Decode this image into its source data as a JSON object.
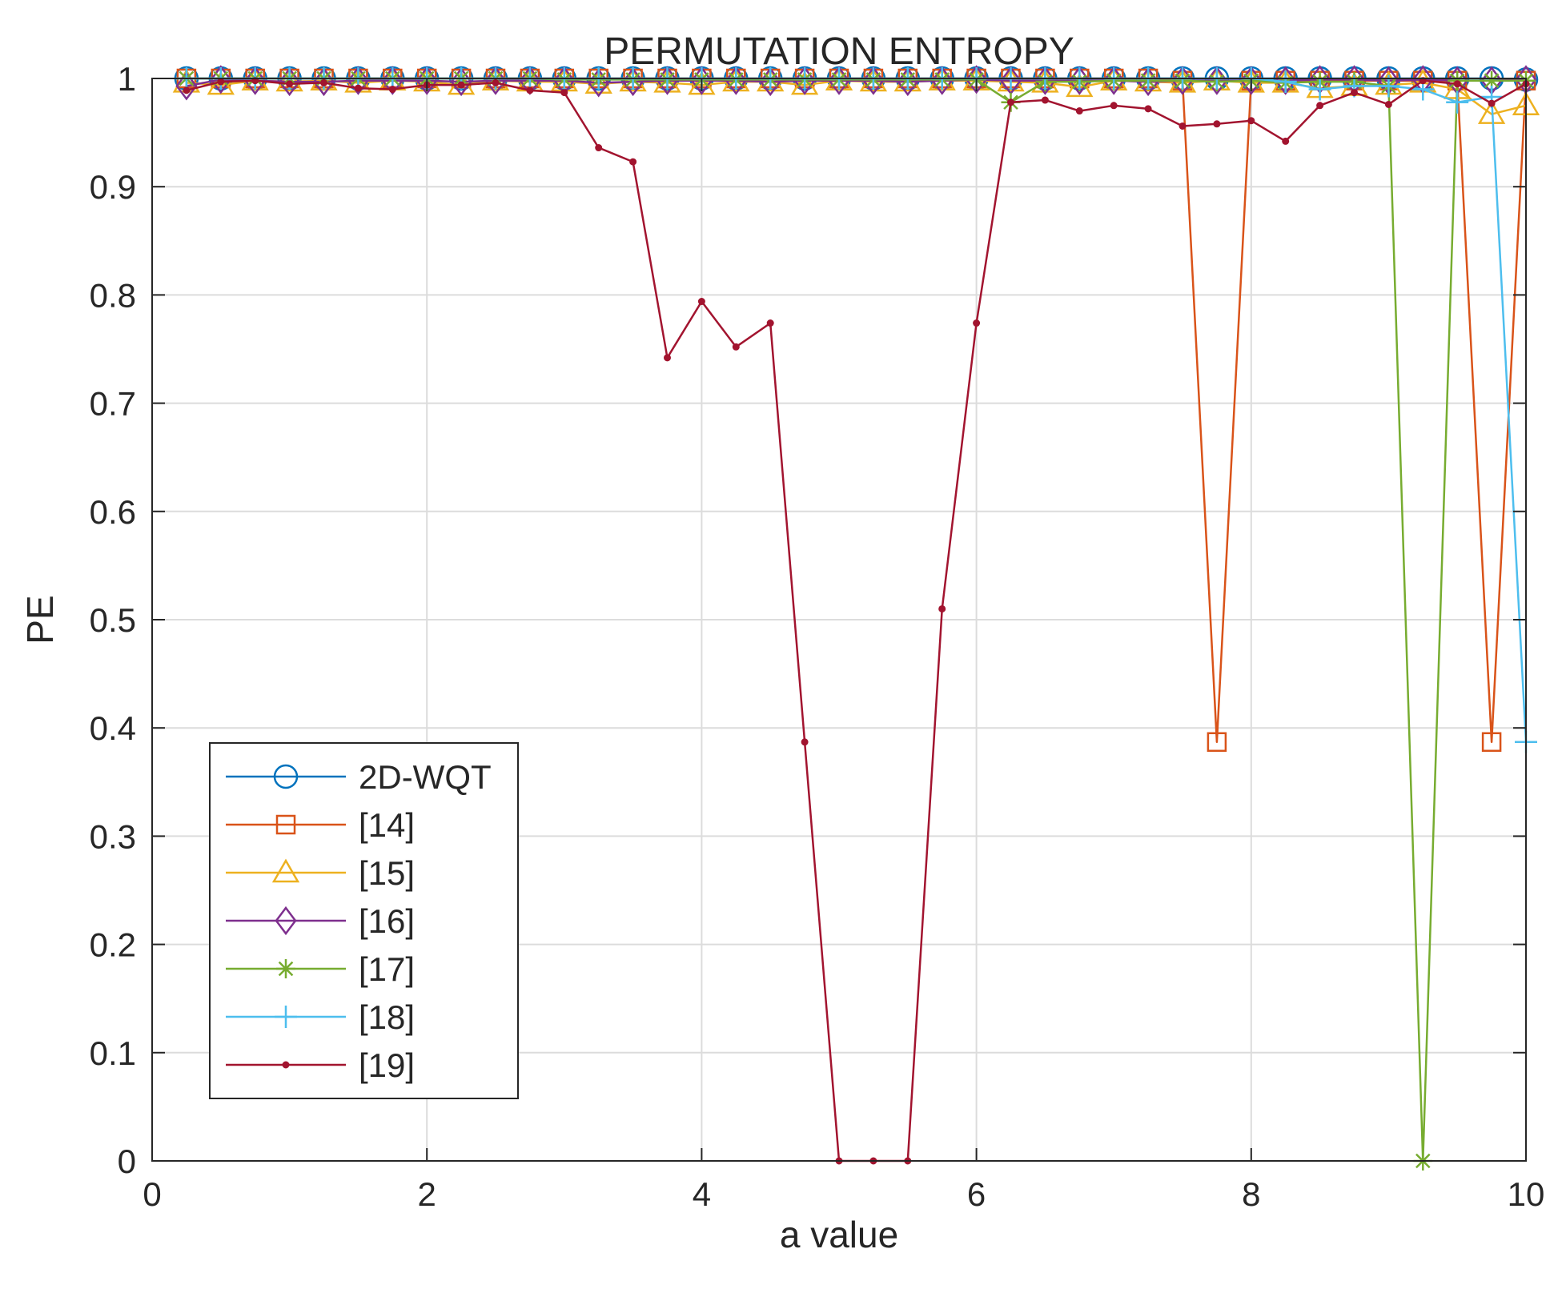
{
  "chart_data": {
    "type": "line",
    "title": "PERMUTATION ENTROPY",
    "xlabel": "a value",
    "ylabel": "PE",
    "xlim": [
      0,
      10
    ],
    "ylim": [
      0,
      1
    ],
    "xticks": [
      "0",
      "2",
      "4",
      "6",
      "8",
      "10"
    ],
    "yticks": [
      "0",
      "0.1",
      "0.2",
      "0.3",
      "0.4",
      "0.5",
      "0.6",
      "0.7",
      "0.8",
      "0.9",
      "1"
    ],
    "grid": true,
    "legend_position": "bottom-left",
    "x": [
      0.25,
      0.5,
      0.75,
      1.0,
      1.25,
      1.5,
      1.75,
      2.0,
      2.25,
      2.5,
      2.75,
      3.0,
      3.25,
      3.5,
      3.75,
      4.0,
      4.25,
      4.5,
      4.75,
      5.0,
      5.25,
      5.5,
      5.75,
      6.0,
      6.25,
      6.5,
      6.75,
      7.0,
      7.25,
      7.5,
      7.75,
      8.0,
      8.25,
      8.5,
      8.75,
      9.0,
      9.25,
      9.5,
      9.75,
      10.0
    ],
    "series": [
      {
        "name": "2D-WQT",
        "color": "#0072BD",
        "marker": "circle",
        "values": [
          1.0,
          1.0,
          1.0,
          1.0,
          1.0,
          1.0,
          1.0,
          1.0,
          1.0,
          1.0,
          1.0,
          1.0,
          1.0,
          1.0,
          1.0,
          1.0,
          1.0,
          1.0,
          1.0,
          1.0,
          1.0,
          1.0,
          1.0,
          1.0,
          1.0,
          1.0,
          1.0,
          1.0,
          1.0,
          1.0,
          1.0,
          1.0,
          1.0,
          1.0,
          1.0,
          1.0,
          1.0,
          1.0,
          1.0,
          0.999
        ]
      },
      {
        "name": "[14]",
        "color": "#D95319",
        "marker": "square",
        "values": [
          1.0,
          1.0,
          1.0,
          1.0,
          1.0,
          1.0,
          1.0,
          1.0,
          1.0,
          1.0,
          1.0,
          1.0,
          1.0,
          1.0,
          1.0,
          1.0,
          1.0,
          1.0,
          1.0,
          1.0,
          1.0,
          1.0,
          1.0,
          1.0,
          1.0,
          1.0,
          1.0,
          1.0,
          1.0,
          0.998,
          0.387,
          0.998,
          0.998,
          0.998,
          0.998,
          0.998,
          0.998,
          0.998,
          0.387,
          0.998
        ]
      },
      {
        "name": "[15]",
        "color": "#EDB120",
        "marker": "triangle",
        "values": [
          0.996,
          0.994,
          0.998,
          0.997,
          0.998,
          0.996,
          0.998,
          0.997,
          0.994,
          0.998,
          0.997,
          0.997,
          0.995,
          0.997,
          0.996,
          0.994,
          0.997,
          0.997,
          0.994,
          0.998,
          0.997,
          0.997,
          0.998,
          0.998,
          0.997,
          0.996,
          0.992,
          0.998,
          0.997,
          0.996,
          0.998,
          0.996,
          0.996,
          0.991,
          0.993,
          0.994,
          0.996,
          0.99,
          0.967,
          0.975
        ]
      },
      {
        "name": "[16]",
        "color": "#7E2F8E",
        "marker": "diamond",
        "values": [
          0.993,
          0.999,
          0.998,
          0.997,
          0.997,
          0.998,
          0.998,
          0.998,
          0.997,
          0.998,
          0.998,
          0.998,
          0.996,
          0.997,
          0.998,
          0.998,
          0.998,
          0.997,
          0.998,
          0.998,
          0.998,
          0.997,
          0.998,
          0.999,
          0.998,
          0.998,
          0.998,
          0.998,
          0.997,
          0.998,
          0.998,
          0.998,
          0.998,
          0.999,
          0.999,
          0.998,
          0.999,
          0.998,
          0.998,
          0.999
        ]
      },
      {
        "name": "[17]",
        "color": "#77AC30",
        "marker": "asterisk",
        "values": [
          1.0,
          1.0,
          1.0,
          1.0,
          1.0,
          1.0,
          1.0,
          1.0,
          1.0,
          1.0,
          1.0,
          0.999,
          0.999,
          0.999,
          0.999,
          0.999,
          0.999,
          0.999,
          0.999,
          0.999,
          0.999,
          0.999,
          0.999,
          0.999,
          0.978,
          0.997,
          0.997,
          0.998,
          0.998,
          0.998,
          0.997,
          0.998,
          0.996,
          0.997,
          0.997,
          0.993,
          0.0,
          0.998,
          0.998,
          0.998
        ]
      },
      {
        "name": "[18]",
        "color": "#4DBEEE",
        "marker": "plus",
        "values": [
          1.0,
          1.0,
          1.0,
          1.0,
          1.0,
          1.0,
          1.0,
          1.0,
          1.0,
          1.0,
          1.0,
          1.0,
          1.0,
          1.0,
          1.0,
          1.0,
          1.0,
          1.0,
          1.0,
          1.0,
          1.0,
          1.0,
          1.0,
          1.0,
          1.0,
          1.0,
          1.0,
          1.0,
          1.0,
          1.0,
          1.0,
          1.0,
          0.997,
          0.99,
          0.993,
          0.993,
          0.99,
          0.978,
          0.983,
          0.387
        ]
      },
      {
        "name": "[19]",
        "color": "#A2142F",
        "marker": "dot",
        "values": [
          0.989,
          0.997,
          0.998,
          0.995,
          0.996,
          0.991,
          0.99,
          0.994,
          0.994,
          0.996,
          0.989,
          0.987,
          0.936,
          0.923,
          0.742,
          0.794,
          0.752,
          0.774,
          0.387,
          0.0,
          0.0,
          0.0,
          0.51,
          0.774,
          0.978,
          0.98,
          0.97,
          0.975,
          0.972,
          0.956,
          0.958,
          0.961,
          0.942,
          0.975,
          0.987,
          0.976,
          0.998,
          0.995,
          0.977,
          0.995
        ]
      }
    ]
  }
}
